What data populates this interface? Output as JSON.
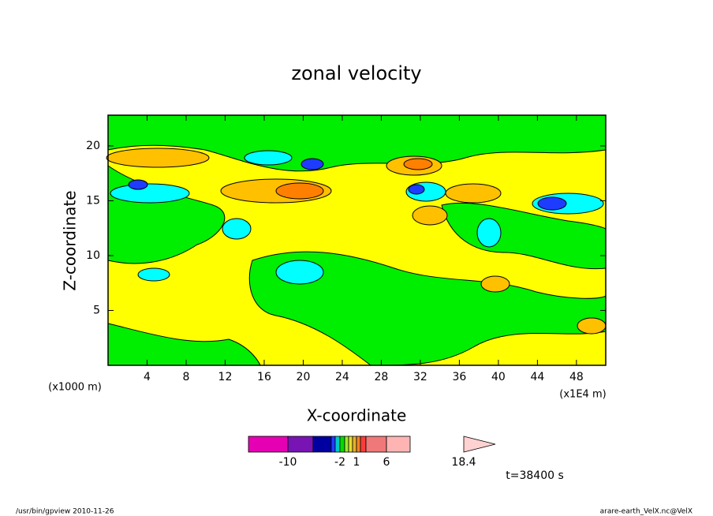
{
  "chart_data": {
    "type": "contour",
    "title": "zonal velocity",
    "x_label": "X-coordinate",
    "y_label": "Z-coordinate",
    "x_unit_label": "(x1000 m)",
    "x_scale_label": "(x1E4 m)",
    "xlim": [
      0,
      51
    ],
    "xticks": [
      4,
      8,
      12,
      16,
      20,
      24,
      28,
      32,
      36,
      40,
      44,
      48
    ],
    "ylim": [
      0,
      22.8
    ],
    "yticks": [
      5,
      10,
      15,
      20
    ],
    "colorbar": {
      "colors": [
        "#e600b4",
        "#7814b4",
        "#0000a0",
        "#1e3cff",
        "#00c8c8",
        "#00dc00",
        "#a0e632",
        "#e6dc32",
        "#e6af2d",
        "#f08228",
        "#fa3c3c",
        "#f07878",
        "#ffb4b4",
        "#ffd2d2"
      ],
      "ticks": [
        -10,
        -2,
        1,
        6,
        18.4
      ]
    },
    "time_label": "t=38400 s",
    "footer_left": "/usr/bin/gpview  2010-11-26",
    "footer_right": "arare-earth_VelX.nc@VelX"
  }
}
